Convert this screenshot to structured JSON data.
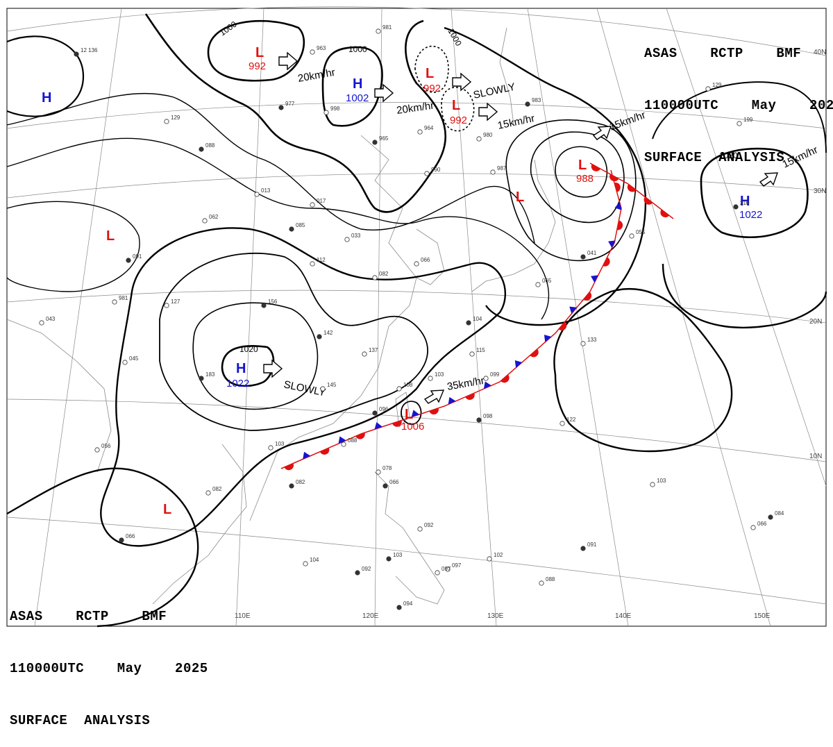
{
  "header": {
    "line1": "ASAS    RCTP    BMF",
    "line2": "110000UTC    May    2025",
    "line3": "SURFACE  ANALYSIS"
  },
  "lat_labels": [
    "40N",
    "30N",
    "20N",
    "10N"
  ],
  "lon_labels": [
    "110E",
    "120E",
    "130E",
    "140E",
    "150E"
  ],
  "isobar_labels": [
    "1000",
    "1000",
    "1000",
    "1020",
    "1020"
  ],
  "systems": [
    {
      "type": "L",
      "pressure": "992"
    },
    {
      "type": "H",
      "pressure": "1002"
    },
    {
      "type": "L",
      "pressure": "992"
    },
    {
      "type": "L",
      "pressure": "992"
    },
    {
      "type": "L",
      "pressure": "988"
    },
    {
      "type": "L",
      "pressure": ""
    },
    {
      "type": "H",
      "pressure": "1022"
    },
    {
      "type": "H",
      "pressure": "1022"
    },
    {
      "type": "L",
      "pressure": "1006"
    },
    {
      "type": "H",
      "pressure": ""
    },
    {
      "type": "L",
      "pressure": ""
    },
    {
      "type": "L",
      "pressure": ""
    }
  ],
  "motions": [
    "20km/hr",
    "20km/hr",
    "SLOWLY",
    "15km/hr",
    "15km/hr",
    "15km/hr",
    "SLOWLY",
    "35km/hr"
  ],
  "stations": [
    "12 136",
    "981",
    "963",
    "977",
    "998",
    "964",
    "965",
    "980",
    "987",
    "983",
    "990",
    "129",
    "088",
    "013",
    "017",
    "085",
    "033",
    "062",
    "091",
    "981",
    "127",
    "156",
    "112",
    "082",
    "142",
    "137",
    "108",
    "096",
    "103",
    "145",
    "183",
    "088",
    "103",
    "082",
    "056",
    "082",
    "066",
    "043",
    "045",
    "066",
    "078",
    "092",
    "103",
    "097",
    "102",
    "091",
    "103",
    "088",
    "094",
    "133",
    "122",
    "098",
    "099",
    "115",
    "104",
    "066",
    "065",
    "041",
    "055",
    "199",
    "210",
    "129",
    "104",
    "092",
    "097",
    "066",
    "084"
  ]
}
